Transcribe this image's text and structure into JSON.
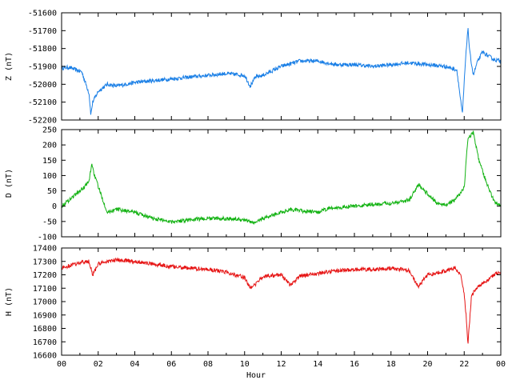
{
  "chart_data": [
    {
      "type": "line",
      "ylabel": "Z (nT)",
      "ylim": [
        -52200,
        -51600
      ],
      "yticks": [
        -52200,
        -52100,
        -52000,
        -51900,
        -51800,
        -51700,
        -51600
      ],
      "series": [
        {
          "color": "#1a7fe6",
          "x": [
            0,
            0.4,
            0.8,
            1.1,
            1.5,
            1.6,
            1.7,
            2.0,
            2.5,
            3.0,
            4.0,
            5.0,
            6.0,
            7.0,
            8.0,
            9.0,
            10.0,
            10.3,
            10.6,
            11.0,
            12.0,
            12.7,
            13.0,
            14.0,
            14.5,
            15.0,
            16.0,
            17.0,
            18.0,
            19.0,
            20.0,
            21.0,
            21.6,
            21.9,
            22.05,
            22.2,
            22.3,
            22.5,
            22.7,
            23.0,
            23.3,
            23.6,
            24.0
          ],
          "values": [
            -51910,
            -51905,
            -51920,
            -51930,
            -52050,
            -52170,
            -52100,
            -52040,
            -52000,
            -52010,
            -51990,
            -51980,
            -51970,
            -51960,
            -51950,
            -51940,
            -51950,
            -52010,
            -51960,
            -51950,
            -51900,
            -51880,
            -51870,
            -51870,
            -51880,
            -51890,
            -51890,
            -51900,
            -51890,
            -51880,
            -51890,
            -51900,
            -51920,
            -52170,
            -51900,
            -51680,
            -51820,
            -51950,
            -51880,
            -51820,
            -51840,
            -51860,
            -51870
          ]
        }
      ]
    },
    {
      "type": "line",
      "ylabel": "D (nT)",
      "ylim": [
        -100,
        250
      ],
      "yticks": [
        -100,
        -50,
        0,
        50,
        100,
        150,
        200,
        250
      ],
      "series": [
        {
          "color": "#14b314",
          "x": [
            0,
            0.4,
            0.8,
            1.2,
            1.5,
            1.65,
            1.8,
            2.2,
            2.5,
            3.0,
            4.0,
            5.0,
            6.0,
            7.0,
            8.0,
            9.0,
            10.0,
            10.5,
            11.0,
            12.0,
            12.5,
            13.0,
            14.0,
            14.5,
            15.0,
            16.0,
            17.0,
            18.0,
            19.0,
            19.5,
            20.0,
            20.5,
            21.0,
            21.5,
            22.0,
            22.2,
            22.5,
            22.8,
            23.2,
            23.6,
            24.0
          ],
          "values": [
            0,
            20,
            40,
            60,
            80,
            140,
            100,
            30,
            -20,
            -10,
            -20,
            -40,
            -50,
            -45,
            -40,
            -40,
            -45,
            -55,
            -40,
            -20,
            -10,
            -15,
            -20,
            -10,
            -5,
            0,
            5,
            10,
            20,
            70,
            40,
            10,
            5,
            20,
            60,
            220,
            240,
            150,
            80,
            20,
            0
          ]
        }
      ]
    },
    {
      "type": "line",
      "xlabel": "Hour",
      "ylabel": "H (nT)",
      "ylim": [
        16600,
        17400
      ],
      "yticks": [
        16600,
        16700,
        16800,
        16900,
        17000,
        17100,
        17200,
        17300,
        17400
      ],
      "xlim": [
        0,
        24
      ],
      "xtick_labels": [
        "00",
        "02",
        "04",
        "06",
        "08",
        "10",
        "12",
        "14",
        "16",
        "18",
        "20",
        "22",
        "00"
      ],
      "series": [
        {
          "color": "#e61414",
          "x": [
            0,
            0.5,
            1.0,
            1.5,
            1.7,
            2.0,
            2.5,
            3.0,
            4.0,
            5.0,
            6.0,
            7.0,
            8.0,
            9.0,
            10.0,
            10.3,
            10.7,
            11.0,
            12.0,
            12.5,
            13.0,
            14.0,
            15.0,
            16.0,
            17.0,
            18.0,
            19.0,
            19.5,
            20.0,
            21.0,
            21.5,
            21.8,
            22.0,
            22.1,
            22.2,
            22.4,
            22.8,
            23.2,
            23.6,
            24.0
          ],
          "values": [
            17250,
            17270,
            17290,
            17300,
            17200,
            17280,
            17300,
            17310,
            17300,
            17280,
            17260,
            17250,
            17240,
            17220,
            17180,
            17100,
            17140,
            17190,
            17200,
            17120,
            17190,
            17210,
            17230,
            17240,
            17240,
            17250,
            17230,
            17110,
            17200,
            17230,
            17250,
            17200,
            17050,
            16900,
            16680,
            17050,
            17120,
            17150,
            17200,
            17220
          ]
        }
      ]
    }
  ],
  "axis_color": "#000000"
}
